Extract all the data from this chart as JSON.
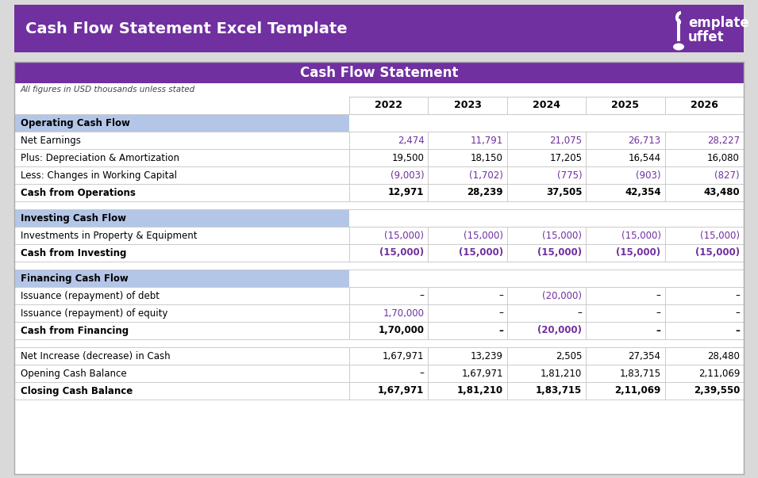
{
  "title_bar_color": "#7030A0",
  "title_text": "Cash Flow Statement Excel Template",
  "title_text_color": "#FFFFFF",
  "subtitle_bar_color": "#7030A0",
  "subtitle_text": "Cash Flow Statement",
  "subtitle_text_color": "#FFFFFF",
  "note_text": "All figures in USD thousands unless stated",
  "outer_bg": "#D9D9D9",
  "inner_bg": "#FFFFFF",
  "section_header_bg": "#B4C6E7",
  "purple": "#7030A0",
  "black": "#000000",
  "border_color": "#AAAAAA",
  "grid_color": "#CCCCCC",
  "header_years": [
    "2022",
    "2023",
    "2024",
    "2025",
    "2026"
  ],
  "rows": [
    {
      "label": "Operating Cash Flow",
      "type": "section_header",
      "values": [
        "",
        "",
        "",
        "",
        ""
      ]
    },
    {
      "label": "Net Earnings",
      "type": "normal",
      "values": [
        "2,474",
        "11,791",
        "21,075",
        "26,713",
        "28,227"
      ],
      "val_colors": [
        "purple",
        "purple",
        "purple",
        "purple",
        "purple"
      ]
    },
    {
      "label": "Plus: Depreciation & Amortization",
      "type": "normal",
      "values": [
        "19,500",
        "18,150",
        "17,205",
        "16,544",
        "16,080"
      ],
      "val_colors": [
        "black",
        "black",
        "black",
        "black",
        "black"
      ]
    },
    {
      "label": "Less: Changes in Working Capital",
      "type": "normal",
      "values": [
        "(9,003)",
        "(1,702)",
        "(775)",
        "(903)",
        "(827)"
      ],
      "val_colors": [
        "purple",
        "purple",
        "purple",
        "purple",
        "purple"
      ]
    },
    {
      "label": "Cash from Operations",
      "type": "bold",
      "values": [
        "12,971",
        "28,239",
        "37,505",
        "42,354",
        "43,480"
      ],
      "val_colors": [
        "black",
        "black",
        "black",
        "black",
        "black"
      ]
    },
    {
      "label": "",
      "type": "spacer",
      "values": [
        "",
        "",
        "",
        "",
        ""
      ],
      "val_colors": []
    },
    {
      "label": "Investing Cash Flow",
      "type": "section_header",
      "values": [
        "",
        "",
        "",
        "",
        ""
      ],
      "val_colors": []
    },
    {
      "label": "Investments in Property & Equipment",
      "type": "normal",
      "values": [
        "(15,000)",
        "(15,000)",
        "(15,000)",
        "(15,000)",
        "(15,000)"
      ],
      "val_colors": [
        "purple",
        "purple",
        "purple",
        "purple",
        "purple"
      ]
    },
    {
      "label": "Cash from Investing",
      "type": "bold",
      "values": [
        "(15,000)",
        "(15,000)",
        "(15,000)",
        "(15,000)",
        "(15,000)"
      ],
      "val_colors": [
        "purple",
        "purple",
        "purple",
        "purple",
        "purple"
      ]
    },
    {
      "label": "",
      "type": "spacer",
      "values": [
        "",
        "",
        "",
        "",
        ""
      ],
      "val_colors": []
    },
    {
      "label": "Financing Cash Flow",
      "type": "section_header",
      "values": [
        "",
        "",
        "",
        "",
        ""
      ],
      "val_colors": []
    },
    {
      "label": "Issuance (repayment) of debt",
      "type": "normal",
      "values": [
        "–",
        "–",
        "(20,000)",
        "–",
        "–"
      ],
      "val_colors": [
        "black",
        "black",
        "purple",
        "black",
        "black"
      ]
    },
    {
      "label": "Issuance (repayment) of equity",
      "type": "normal",
      "values": [
        "1,70,000",
        "–",
        "–",
        "–",
        "–"
      ],
      "val_colors": [
        "purple",
        "black",
        "black",
        "black",
        "black"
      ]
    },
    {
      "label": "Cash from Financing",
      "type": "bold",
      "values": [
        "1,70,000",
        "–",
        "(20,000)",
        "–",
        "–"
      ],
      "val_colors": [
        "black",
        "black",
        "purple",
        "black",
        "black"
      ]
    },
    {
      "label": "",
      "type": "spacer",
      "values": [
        "",
        "",
        "",
        "",
        ""
      ],
      "val_colors": []
    },
    {
      "label": "Net Increase (decrease) in Cash",
      "type": "normal",
      "values": [
        "1,67,971",
        "13,239",
        "2,505",
        "27,354",
        "28,480"
      ],
      "val_colors": [
        "black",
        "black",
        "black",
        "black",
        "black"
      ]
    },
    {
      "label": "Opening Cash Balance",
      "type": "normal",
      "values": [
        "–",
        "1,67,971",
        "1,81,210",
        "1,83,715",
        "2,11,069"
      ],
      "val_colors": [
        "black",
        "black",
        "black",
        "black",
        "black"
      ]
    },
    {
      "label": "Closing Cash Balance",
      "type": "bold",
      "values": [
        "1,67,971",
        "1,81,210",
        "1,83,715",
        "2,11,069",
        "2,39,550"
      ],
      "val_colors": [
        "black",
        "black",
        "black",
        "black",
        "black"
      ]
    }
  ],
  "fig_w": 9.55,
  "fig_h": 6.03,
  "dpi": 100
}
